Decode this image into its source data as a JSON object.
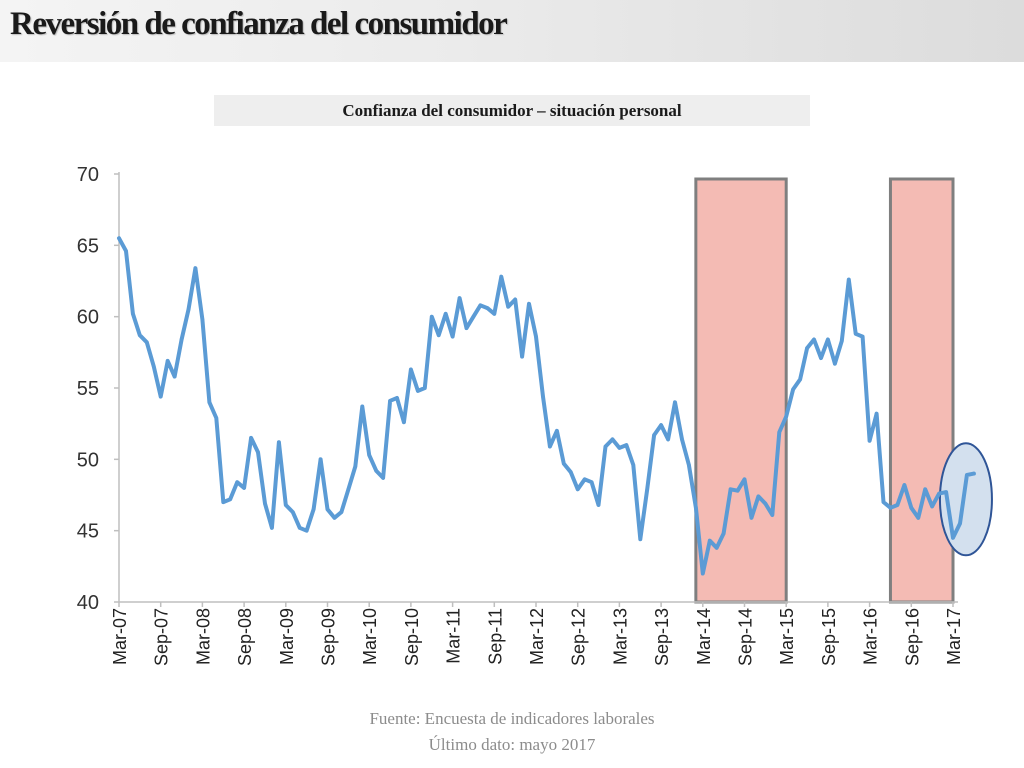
{
  "slide": {
    "title": "Reversión de confianza del consumidor",
    "source_line1": "Fuente: Encuesta de indicadores laborales",
    "source_line2": "Último dato: mayo 2017"
  },
  "chart_data": {
    "type": "line",
    "title": "Confianza del consumidor – situación personal",
    "xlabel": "",
    "ylabel": "",
    "ylim": [
      40,
      70
    ],
    "yticks": [
      40,
      45,
      50,
      55,
      60,
      65,
      70
    ],
    "grid": false,
    "x_tick_labels": [
      "Mar-07",
      "Sep-07",
      "Mar-08",
      "Sep-08",
      "Mar-09",
      "Sep-09",
      "Mar-10",
      "Sep-10",
      "Mar-11",
      "Sep-11",
      "Mar-12",
      "Sep-12",
      "Mar-13",
      "Sep-13",
      "Mar-14",
      "Sep-14",
      "Mar-15",
      "Sep-15",
      "Mar-16",
      "Sep-16",
      "Mar-17"
    ],
    "series": [
      {
        "name": "",
        "color": "#5b9bd5",
        "start": "Mar-07",
        "frequency": "monthly",
        "values": [
          65.5,
          64.6,
          60.2,
          58.7,
          58.2,
          56.5,
          54.4,
          56.9,
          55.8,
          58.4,
          60.5,
          63.4,
          59.8,
          54.0,
          52.9,
          47.0,
          47.2,
          48.4,
          48.0,
          51.5,
          50.5,
          46.9,
          45.2,
          51.2,
          46.8,
          46.3,
          45.2,
          45.0,
          46.5,
          50.0,
          46.5,
          45.9,
          46.3,
          47.9,
          49.5,
          53.7,
          50.3,
          49.2,
          48.7,
          54.1,
          54.3,
          52.6,
          56.3,
          54.8,
          55.0,
          60.0,
          58.7,
          60.2,
          58.6,
          61.3,
          59.2,
          60.0,
          60.8,
          60.6,
          60.2,
          62.8,
          60.7,
          61.2,
          57.2,
          60.9,
          58.6,
          54.4,
          50.9,
          52.0,
          49.7,
          49.1,
          47.9,
          48.6,
          48.4,
          46.8,
          50.9,
          51.4,
          50.8,
          51.0,
          49.6,
          44.4,
          47.9,
          51.7,
          52.4,
          51.4,
          54.0,
          51.4,
          49.6,
          46.6,
          42.0,
          44.3,
          43.8,
          44.8,
          47.9,
          47.8,
          48.6,
          45.9,
          47.4,
          46.9,
          46.1,
          51.9,
          53.0,
          54.9,
          55.6,
          57.8,
          58.4,
          57.1,
          58.4,
          56.7,
          58.3,
          62.6,
          58.8,
          58.6,
          51.3,
          53.2,
          47.0,
          46.6,
          46.8,
          48.2,
          46.6,
          45.9,
          47.9,
          46.7,
          47.6,
          47.7,
          44.5,
          45.5,
          48.9,
          49.0
        ]
      }
    ],
    "highlight_regions": [
      {
        "from": "Feb-14",
        "to": "Mar-15",
        "color": "#f4bbb4"
      },
      {
        "from": "Jun-16",
        "to": "Mar-17",
        "color": "#f4bbb4"
      }
    ],
    "highlight_ellipse": {
      "around": "Mar-17 – May-17",
      "color": "#d3e0ee"
    }
  }
}
